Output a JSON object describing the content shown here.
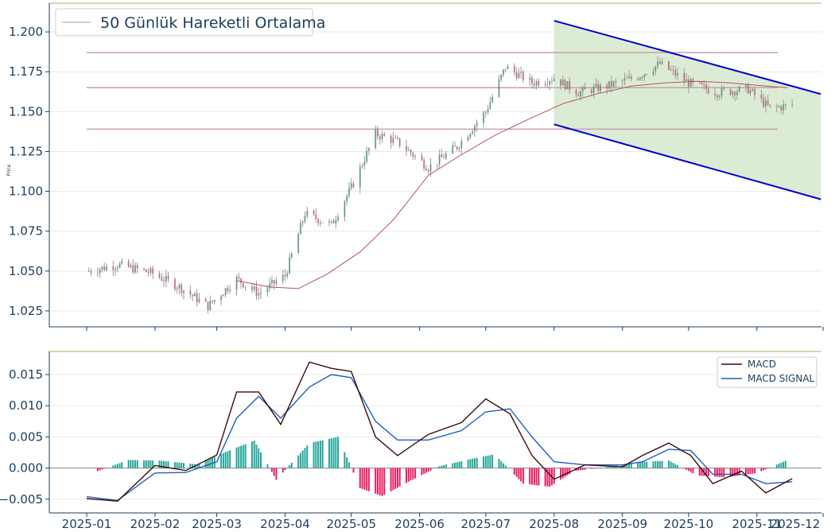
{
  "colors": {
    "candle_up": "#2e8b57",
    "candle_down": "#d2356e",
    "candle_wick": "#9a9a9a",
    "ma_line": "#b0506a",
    "level_lines": "#c9a0b0",
    "channel": "#0000cc",
    "channel_fill": "#dcecd4",
    "macd": "#3a0c0c",
    "signal": "#1f5fbf",
    "hist_pos": "#26a69a",
    "hist_neg": "#e91e63",
    "axis": "#1c3d5a",
    "top_border": "#c8b98a",
    "grid": "#e8e8e8"
  },
  "price_panel": {
    "ylabel": "Price",
    "legend": "50 Günlük Hareketli Ortalama",
    "yticks": [
      "1.025",
      "1.050",
      "1.075",
      "1.100",
      "1.125",
      "1.150",
      "1.175",
      "1.200"
    ]
  },
  "macd_panel": {
    "legend_macd": "MACD",
    "legend_signal": "MACD SIGNAL",
    "yticks": [
      "−0.005",
      "0.000",
      "0.005",
      "0.010",
      "0.015"
    ]
  },
  "xticks": [
    "2025-01",
    "2025-02",
    "2025-03",
    "2025-04",
    "2025-05",
    "2025-06",
    "2025-07",
    "2025-08",
    "2025-09",
    "2025-10",
    "2025-11",
    "2025-12"
  ],
  "chart_data": [
    {
      "type": "line",
      "ylim": [
        1.015,
        1.218
      ],
      "ylabel": "Price",
      "series": [
        {
          "name": "50 Günlük Hareketli Ortalama",
          "x": [
            "2025-03-10",
            "2025-03-25",
            "2025-04-07",
            "2025-04-20",
            "2025-05-05",
            "2025-05-20",
            "2025-06-05",
            "2025-06-20",
            "2025-07-05",
            "2025-07-20",
            "2025-08-05",
            "2025-08-20",
            "2025-09-05",
            "2025-09-20",
            "2025-10-05",
            "2025-10-20",
            "2025-11-05",
            "2025-11-15"
          ],
          "values": [
            1.044,
            1.04,
            1.039,
            1.048,
            1.062,
            1.082,
            1.11,
            1.123,
            1.135,
            1.145,
            1.155,
            1.161,
            1.166,
            1.168,
            1.169,
            1.168,
            1.166,
            1.165
          ]
        }
      ],
      "price_series": {
        "x": [
          "2025-01-02",
          "2025-01-15",
          "2025-01-30",
          "2025-02-12",
          "2025-02-25",
          "2025-03-10",
          "2025-03-20",
          "2025-04-01",
          "2025-04-10",
          "2025-04-22",
          "2025-05-02",
          "2025-05-12",
          "2025-05-22",
          "2025-06-05",
          "2025-06-18",
          "2025-07-01",
          "2025-07-10",
          "2025-07-22",
          "2025-08-01",
          "2025-08-12",
          "2025-08-25",
          "2025-09-08",
          "2025-09-18",
          "2025-10-01",
          "2025-10-14",
          "2025-10-28",
          "2025-11-07",
          "2025-11-17"
        ],
        "values": [
          1.05,
          1.054,
          1.049,
          1.04,
          1.028,
          1.045,
          1.036,
          1.047,
          1.086,
          1.079,
          1.105,
          1.136,
          1.131,
          1.115,
          1.128,
          1.15,
          1.178,
          1.168,
          1.171,
          1.162,
          1.166,
          1.172,
          1.18,
          1.168,
          1.162,
          1.164,
          1.152,
          1.154
        ]
      },
      "horizontal_levels": [
        1.187,
        1.165,
        1.139
      ],
      "channel": {
        "x": [
          "2025-08-01",
          "2025-11-30"
        ],
        "upper": [
          1.207,
          1.161
        ],
        "lower": [
          1.142,
          1.095
        ]
      }
    },
    {
      "type": "line",
      "ylim": [
        -0.0072,
        0.0187
      ],
      "series": [
        {
          "name": "MACD",
          "x": [
            "2025-01-01",
            "2025-01-15",
            "2025-02-01",
            "2025-02-15",
            "2025-03-01",
            "2025-03-10",
            "2025-03-20",
            "2025-03-30",
            "2025-04-12",
            "2025-04-22",
            "2025-05-01",
            "2025-05-12",
            "2025-05-22",
            "2025-06-05",
            "2025-06-20",
            "2025-07-01",
            "2025-07-12",
            "2025-07-22",
            "2025-08-01",
            "2025-08-15",
            "2025-09-01",
            "2025-09-10",
            "2025-09-22",
            "2025-10-02",
            "2025-10-12",
            "2025-10-25",
            "2025-11-05",
            "2025-11-17"
          ],
          "values": [
            -0.0049,
            -0.0053,
            0.0004,
            -0.0004,
            0.0021,
            0.0122,
            0.0122,
            0.007,
            0.017,
            0.016,
            0.0155,
            0.005,
            0.002,
            0.0054,
            0.0073,
            0.0111,
            0.0087,
            0.002,
            -0.0018,
            0.0005,
            0.0002,
            0.002,
            0.004,
            0.002,
            -0.0025,
            -0.0005,
            -0.004,
            -0.0017
          ]
        },
        {
          "name": "MACD SIGNAL",
          "x": [
            "2025-01-01",
            "2025-01-15",
            "2025-02-01",
            "2025-02-15",
            "2025-03-01",
            "2025-03-10",
            "2025-03-20",
            "2025-03-30",
            "2025-04-12",
            "2025-04-22",
            "2025-05-01",
            "2025-05-12",
            "2025-05-22",
            "2025-06-05",
            "2025-06-20",
            "2025-07-01",
            "2025-07-12",
            "2025-07-22",
            "2025-08-01",
            "2025-08-15",
            "2025-09-01",
            "2025-09-10",
            "2025-09-22",
            "2025-10-02",
            "2025-10-12",
            "2025-10-25",
            "2025-11-05",
            "2025-11-17"
          ],
          "values": [
            -0.0046,
            -0.0052,
            -0.0008,
            -0.0007,
            0.001,
            0.008,
            0.0115,
            0.008,
            0.013,
            0.015,
            0.0145,
            0.0075,
            0.0045,
            0.0045,
            0.006,
            0.009,
            0.0095,
            0.005,
            0.001,
            0.0005,
            0.0005,
            0.001,
            0.003,
            0.0028,
            -0.001,
            -0.001,
            -0.0025,
            -0.0022
          ]
        }
      ],
      "histogram": {
        "x": [
          "2025-01-05",
          "2025-01-20",
          "2025-02-03",
          "2025-02-20",
          "2025-03-08",
          "2025-03-18",
          "2025-03-28",
          "2025-04-12",
          "2025-04-25",
          "2025-05-05",
          "2025-05-15",
          "2025-05-28",
          "2025-06-10",
          "2025-06-25",
          "2025-07-05",
          "2025-07-18",
          "2025-07-30",
          "2025-08-10",
          "2025-08-25",
          "2025-09-10",
          "2025-09-22",
          "2025-10-05",
          "2025-10-18",
          "2025-11-01",
          "2025-11-15"
        ],
        "values": [
          -0.0006,
          0.0013,
          0.0012,
          0.0006,
          0.003,
          0.0044,
          -0.0019,
          0.004,
          0.005,
          -0.0032,
          -0.0045,
          -0.002,
          0.0003,
          0.0015,
          0.0022,
          -0.0025,
          -0.003,
          -0.0005,
          0.0002,
          0.001,
          0.0012,
          -0.0012,
          -0.0015,
          -0.0008,
          0.0013
        ]
      }
    }
  ]
}
